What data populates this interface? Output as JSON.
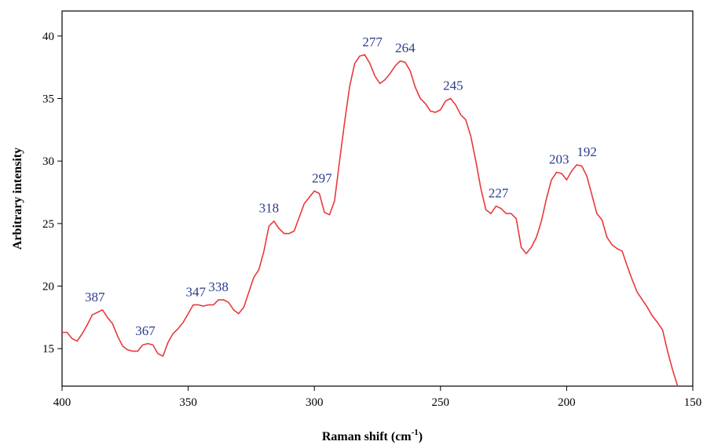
{
  "chart_data": {
    "type": "line",
    "xlabel": "Raman shift (cm",
    "xlabel_sup": "-1",
    "xlabel_close": ")",
    "ylabel": "Arbitrary intensity",
    "xlim": [
      400,
      150
    ],
    "ylim": [
      12,
      42
    ],
    "x_reversed": true,
    "x_ticks": [
      400,
      350,
      300,
      250,
      200,
      150
    ],
    "y_ticks": [
      15,
      20,
      25,
      30,
      35,
      40
    ],
    "grid": false,
    "series": [
      {
        "color": "#e8393a",
        "x": [
          400,
          398,
          396,
          394,
          392,
          390,
          388,
          386,
          384,
          382,
          380,
          378,
          376,
          374,
          372,
          370,
          368,
          366,
          364,
          362,
          360,
          358,
          356,
          354,
          352,
          350,
          348,
          346,
          344,
          342,
          340,
          338,
          336,
          334,
          332,
          330,
          328,
          326,
          324,
          322,
          320,
          318,
          316,
          314,
          312,
          310,
          308,
          306,
          304,
          302,
          300,
          298,
          296,
          294,
          292,
          290,
          288,
          286,
          284,
          282,
          280,
          278,
          276,
          274,
          272,
          270,
          268,
          266,
          264,
          262,
          260,
          258,
          256,
          254,
          252,
          250,
          248,
          246,
          244,
          242,
          240,
          238,
          236,
          234,
          232,
          230,
          228,
          226,
          224,
          222,
          220,
          218,
          216,
          214,
          212,
          210,
          208,
          206,
          204,
          202,
          200,
          198,
          196,
          194,
          192,
          190,
          188,
          186,
          184,
          182,
          180,
          178,
          176,
          174,
          172,
          170,
          168,
          166,
          164,
          162,
          160,
          158,
          156
        ],
        "y": [
          16.3,
          16.3,
          15.8,
          15.6,
          16.2,
          16.9,
          17.7,
          17.9,
          18.1,
          17.5,
          17.0,
          16.0,
          15.2,
          14.9,
          14.8,
          14.8,
          15.3,
          15.4,
          15.3,
          14.6,
          14.4,
          15.5,
          16.2,
          16.6,
          17.1,
          17.8,
          18.5,
          18.5,
          18.4,
          18.5,
          18.5,
          18.9,
          18.9,
          18.7,
          18.1,
          17.8,
          18.3,
          19.5,
          20.7,
          21.3,
          22.8,
          24.8,
          25.2,
          24.6,
          24.2,
          24.2,
          24.4,
          25.5,
          26.6,
          27.1,
          27.6,
          27.4,
          25.9,
          25.7,
          26.8,
          30.0,
          33.1,
          36.0,
          37.8,
          38.4,
          38.5,
          37.8,
          36.8,
          36.2,
          36.5,
          37.0,
          37.6,
          38.0,
          37.9,
          37.2,
          35.9,
          35.0,
          34.6,
          34.0,
          33.9,
          34.1,
          34.8,
          35.0,
          34.5,
          33.7,
          33.3,
          32.0,
          30.0,
          27.8,
          26.1,
          25.8,
          26.4,
          26.2,
          25.8,
          25.8,
          25.4,
          23.1,
          22.6,
          23.1,
          23.9,
          25.2,
          27.0,
          28.5,
          29.1,
          29.0,
          28.5,
          29.2,
          29.7,
          29.6,
          28.8,
          27.3,
          25.8,
          25.3,
          23.9,
          23.3,
          23.0,
          22.8,
          21.6,
          20.5,
          19.5,
          18.9,
          18.3,
          17.6,
          17.1,
          16.5,
          14.8,
          13.3,
          11.7
        ]
      }
    ],
    "annotations": [
      {
        "label": "387",
        "x": 387,
        "y": 18.1
      },
      {
        "label": "367",
        "x": 367,
        "y": 15.4
      },
      {
        "label": "347",
        "x": 347,
        "y": 18.5
      },
      {
        "label": "338",
        "x": 338,
        "y": 18.9
      },
      {
        "label": "318",
        "x": 318,
        "y": 25.2
      },
      {
        "label": "297",
        "x": 297,
        "y": 27.6
      },
      {
        "label": "277",
        "x": 277,
        "y": 38.5
      },
      {
        "label": "264",
        "x": 264,
        "y": 38.0
      },
      {
        "label": "245",
        "x": 245,
        "y": 35.0
      },
      {
        "label": "227",
        "x": 227,
        "y": 26.4
      },
      {
        "label": "203",
        "x": 203,
        "y": 29.1
      },
      {
        "label": "192",
        "x": 192,
        "y": 29.7
      }
    ],
    "annotation_color": "#2b3a8c"
  }
}
